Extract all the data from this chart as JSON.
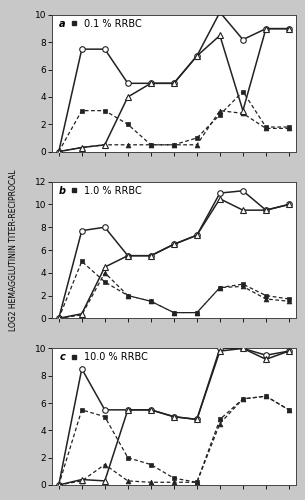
{
  "panels": [
    {
      "label": "a",
      "title": "0.1 % RRBC",
      "ymax": 10,
      "yticks": [
        0,
        2,
        4,
        6,
        8,
        10
      ],
      "x": [
        0,
        1,
        2,
        3,
        4,
        5,
        6,
        7,
        8,
        9,
        10
      ],
      "open_circle": [
        0,
        7.5,
        7.5,
        5.0,
        5.0,
        5.0,
        7.0,
        10.2,
        8.2,
        9.0,
        9.0
      ],
      "open_triangle": [
        0,
        0.3,
        0.5,
        4.0,
        5.0,
        5.0,
        7.0,
        8.5,
        3.0,
        9.0,
        9.0
      ],
      "filled_square": [
        0,
        3.0,
        3.0,
        2.0,
        0.5,
        0.5,
        1.0,
        2.7,
        4.4,
        1.8,
        1.8
      ],
      "filled_tri": [
        0,
        0.3,
        0.5,
        0.5,
        0.5,
        0.5,
        0.5,
        3.0,
        2.8,
        1.7,
        1.7
      ]
    },
    {
      "label": "b",
      "title": "1.0 % RRBC",
      "ymax": 12,
      "yticks": [
        0,
        2,
        4,
        6,
        8,
        10,
        12
      ],
      "x": [
        0,
        1,
        2,
        3,
        4,
        5,
        6,
        7,
        8,
        9,
        10
      ],
      "open_circle": [
        0,
        7.7,
        8.0,
        5.5,
        5.5,
        6.5,
        7.3,
        11.0,
        11.2,
        9.5,
        10.0
      ],
      "open_triangle": [
        0,
        0.4,
        4.5,
        5.5,
        5.5,
        6.5,
        7.3,
        10.5,
        9.5,
        9.5,
        10.0
      ],
      "filled_square": [
        0,
        5.0,
        3.2,
        2.0,
        1.5,
        0.5,
        0.5,
        2.7,
        3.0,
        2.0,
        1.7
      ],
      "filled_tri": [
        0,
        0.3,
        4.0,
        2.0,
        1.5,
        0.5,
        0.5,
        2.7,
        2.8,
        1.7,
        1.5
      ]
    },
    {
      "label": "c",
      "title": "10.0 % RRBC",
      "ymax": 10,
      "yticks": [
        0,
        2,
        4,
        6,
        8,
        10
      ],
      "x": [
        0,
        1,
        2,
        3,
        4,
        5,
        6,
        7,
        8,
        9,
        10
      ],
      "open_circle": [
        0,
        8.5,
        5.5,
        5.5,
        5.5,
        5.0,
        4.8,
        10.0,
        10.0,
        9.5,
        9.8
      ],
      "open_triangle": [
        0,
        0.4,
        0.3,
        5.5,
        5.5,
        5.0,
        4.8,
        9.8,
        10.0,
        9.2,
        9.8
      ],
      "filled_square": [
        0,
        5.5,
        5.0,
        2.0,
        1.5,
        0.5,
        0.2,
        4.8,
        6.3,
        6.5,
        5.5
      ],
      "filled_tri": [
        0,
        0.3,
        1.5,
        0.3,
        0.2,
        0.2,
        0.2,
        4.5,
        6.3,
        6.5,
        5.5
      ]
    }
  ],
  "fig_bg": "#c8c8c8",
  "plot_bg": "#ffffff",
  "line_color": "#222222",
  "ylabel": "LOG2 HEMAGGLUTININ TITER-RECIPROCAL"
}
